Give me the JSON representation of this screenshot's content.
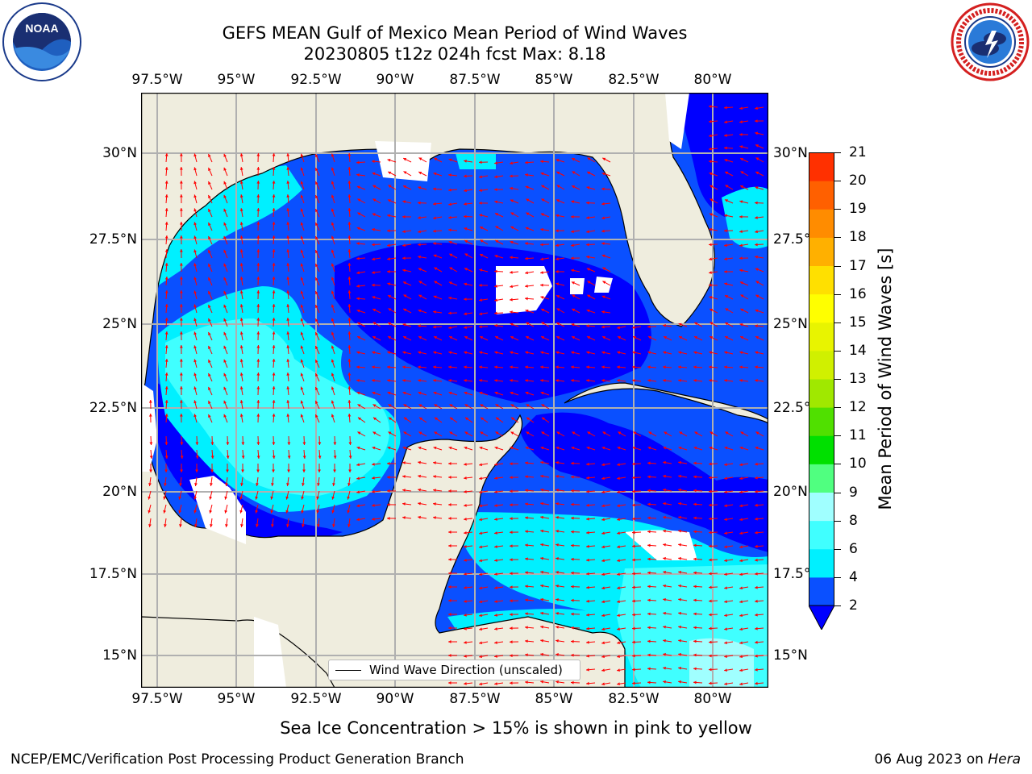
{
  "header": {
    "title_line1": "GEFS MEAN Gulf of Mexico Mean Period of Wind Waves",
    "title_line2": "20230805 t12z 024h fcst   Max: 8.18"
  },
  "logos": {
    "left": "NOAA",
    "left_ring_text": "NATIONAL OCEANIC AND ATMOSPHERIC ADMINISTRATION · U.S. DEPARTMENT OF COMMERCE",
    "right_ring_text": "NATIONAL WEATHER SERVICE"
  },
  "map": {
    "lon_ticks": [
      "97.5°W",
      "95°W",
      "92.5°W",
      "90°W",
      "87.5°W",
      "85°W",
      "82.5°W",
      "80°W"
    ],
    "lat_ticks_left": [
      "30°N",
      "27.5°N",
      "25°N",
      "22.5°N",
      "20°N",
      "17.5°N",
      "15°N"
    ],
    "lat_ticks_right": [
      "30°N",
      "27.5°N",
      "25°N",
      "22.5°N",
      "20°N",
      "17.5°N",
      "15°N"
    ],
    "extent": {
      "lon": [
        -98,
        -78.25
      ],
      "lat": [
        14,
        31.6
      ]
    },
    "gridlines": true,
    "legend": {
      "label": "Wind Wave Direction (unscaled)",
      "position": "lower-center"
    },
    "colors": {
      "land": "#efedde",
      "coast": "#000000",
      "arrow": "#ff0000",
      "grid": "#b0b0b0"
    }
  },
  "colorbar": {
    "label": "Mean Period of Wind Waves [s]",
    "ticks": [
      "21",
      "20",
      "19",
      "18",
      "17",
      "16",
      "15",
      "14",
      "13",
      "12",
      "11",
      "10",
      "9",
      "8",
      "6",
      "4",
      "2"
    ],
    "colors": [
      "#0a50ff",
      "#00f0ff",
      "#40ffff",
      "#a0ffff",
      "#50ff80",
      "#00e000",
      "#50e000",
      "#a0e800",
      "#d0f000",
      "#e8f400",
      "#ffff00",
      "#ffe000",
      "#ffb000",
      "#ff8c00",
      "#ff6000",
      "#ff3000",
      "#ff0000"
    ],
    "under_color": "#0000ff"
  },
  "footer": {
    "note": "Sea Ice Concentration > 15% is shown in pink to yellow",
    "left": "NCEP/EMC/Verification Post Processing Product Generation Branch",
    "right_date": "06 Aug 2023 on ",
    "right_machine": "Hera"
  }
}
